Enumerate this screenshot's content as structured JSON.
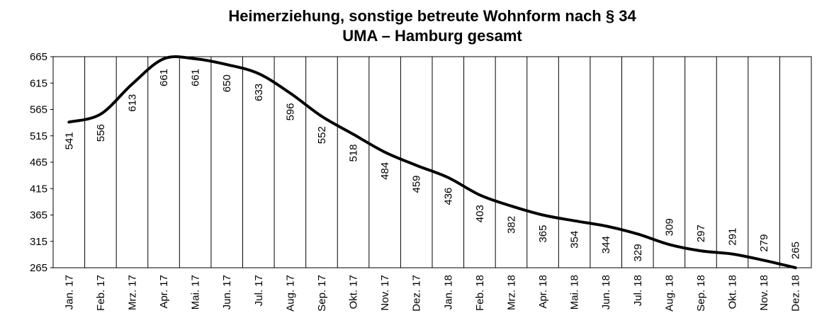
{
  "chart_data": {
    "type": "line",
    "title": "Heimerziehung, sonstige betreute Wohnform nach § 34",
    "subtitle": "UMA – Hamburg gesamt",
    "categories": [
      "Jan. 17",
      "Feb. 17",
      "Mrz. 17",
      "Apr. 17",
      "Mai. 17",
      "Jun. 17",
      "Jul. 17",
      "Aug. 17",
      "Sep. 17",
      "Okt. 17",
      "Nov. 17",
      "Dez. 17",
      "Jan. 18",
      "Feb. 18",
      "Mrz. 18",
      "Apr. 18",
      "Mai. 18",
      "Jun. 18",
      "Jul. 18",
      "Aug. 18",
      "Sep. 18",
      "Okt. 18",
      "Nov. 18",
      "Dez. 18"
    ],
    "values": [
      541,
      556,
      613,
      661,
      661,
      650,
      633,
      596,
      552,
      518,
      484,
      459,
      436,
      403,
      382,
      365,
      354,
      344,
      329,
      309,
      297,
      291,
      279,
      265
    ],
    "color": "#000000",
    "ylim": [
      265,
      665
    ],
    "yticks": [
      265,
      315,
      365,
      415,
      465,
      515,
      565,
      615,
      665
    ]
  }
}
